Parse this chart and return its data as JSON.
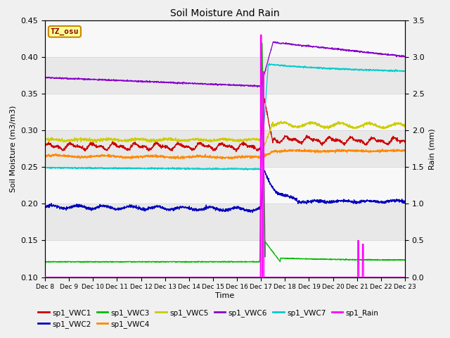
{
  "title": "Soil Moisture And Rain",
  "xlabel": "Time",
  "ylabel_left": "Soil Moisture (m3/m3)",
  "ylabel_right": "Rain (mm)",
  "ylim_left": [
    0.1,
    0.45
  ],
  "ylim_right": [
    0.0,
    3.5
  ],
  "x_tick_labels": [
    "Dec 8",
    "Dec 9",
    "Dec 10",
    "Dec 11",
    "Dec 12",
    "Dec 13",
    "Dec 14",
    "Dec 15",
    "Dec 16",
    "Dec 17",
    "Dec 18",
    "Dec 19",
    "Dec 20",
    "Dec 21",
    "Dec 22",
    "Dec 23"
  ],
  "annotation_text": "TZ_osu",
  "fig_bg": "#f0f0f0",
  "plot_bg": "#e8e8e8",
  "band_color": "white",
  "colors": {
    "VWC1": "#cc0000",
    "VWC2": "#0000bb",
    "VWC3": "#00bb00",
    "VWC4": "#ff8800",
    "VWC5": "#cccc00",
    "VWC6": "#8800cc",
    "VWC7": "#00cccc",
    "Rain": "#ff00ff"
  },
  "legend_entries": [
    {
      "label": "sp1_VWC1",
      "color": "#cc0000"
    },
    {
      "label": "sp1_VWC2",
      "color": "#0000bb"
    },
    {
      "label": "sp1_VWC3",
      "color": "#00bb00"
    },
    {
      "label": "sp1_VWC4",
      "color": "#ff8800"
    },
    {
      "label": "sp1_VWC5",
      "color": "#cccc00"
    },
    {
      "label": "sp1_VWC6",
      "color": "#8800cc"
    },
    {
      "label": "sp1_VWC7",
      "color": "#00cccc"
    },
    {
      "label": "sp1_Rain",
      "color": "#ff00ff"
    }
  ]
}
